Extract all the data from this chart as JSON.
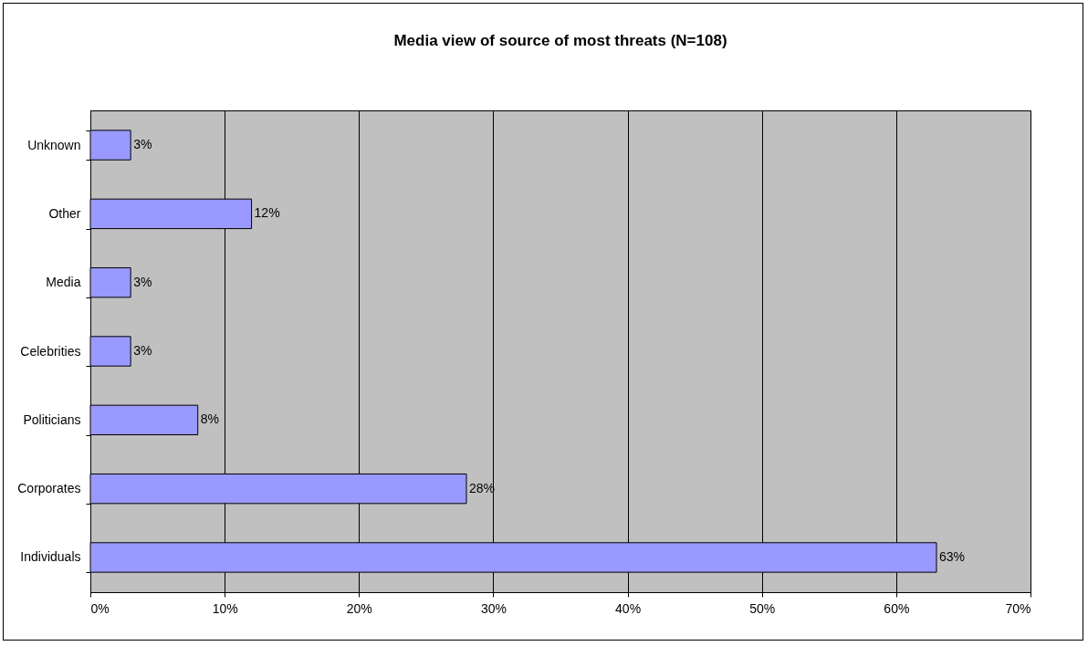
{
  "chart_data": {
    "type": "bar",
    "orientation": "horizontal",
    "title": "Media view of source of most threats (N=108)",
    "categories": [
      "Unknown",
      "Other",
      "Media",
      "Celebrities",
      "Politicians",
      "Corporates",
      "Individuals"
    ],
    "values": [
      3,
      12,
      3,
      3,
      8,
      28,
      63
    ],
    "value_labels": [
      "3%",
      "12%",
      "3%",
      "3%",
      "8%",
      "28%",
      "63%"
    ],
    "color": "#9999ff",
    "xlim": [
      0,
      70
    ],
    "xticks": [
      {
        "value": 0,
        "label": "0%"
      },
      {
        "value": 10,
        "label": "10%"
      },
      {
        "value": 20,
        "label": "20%"
      },
      {
        "value": 30,
        "label": "30%"
      },
      {
        "value": 40,
        "label": "40%"
      },
      {
        "value": 50,
        "label": "50%"
      },
      {
        "value": 60,
        "label": "60%"
      },
      {
        "value": 70,
        "label": "70%"
      }
    ],
    "grid": "x"
  }
}
